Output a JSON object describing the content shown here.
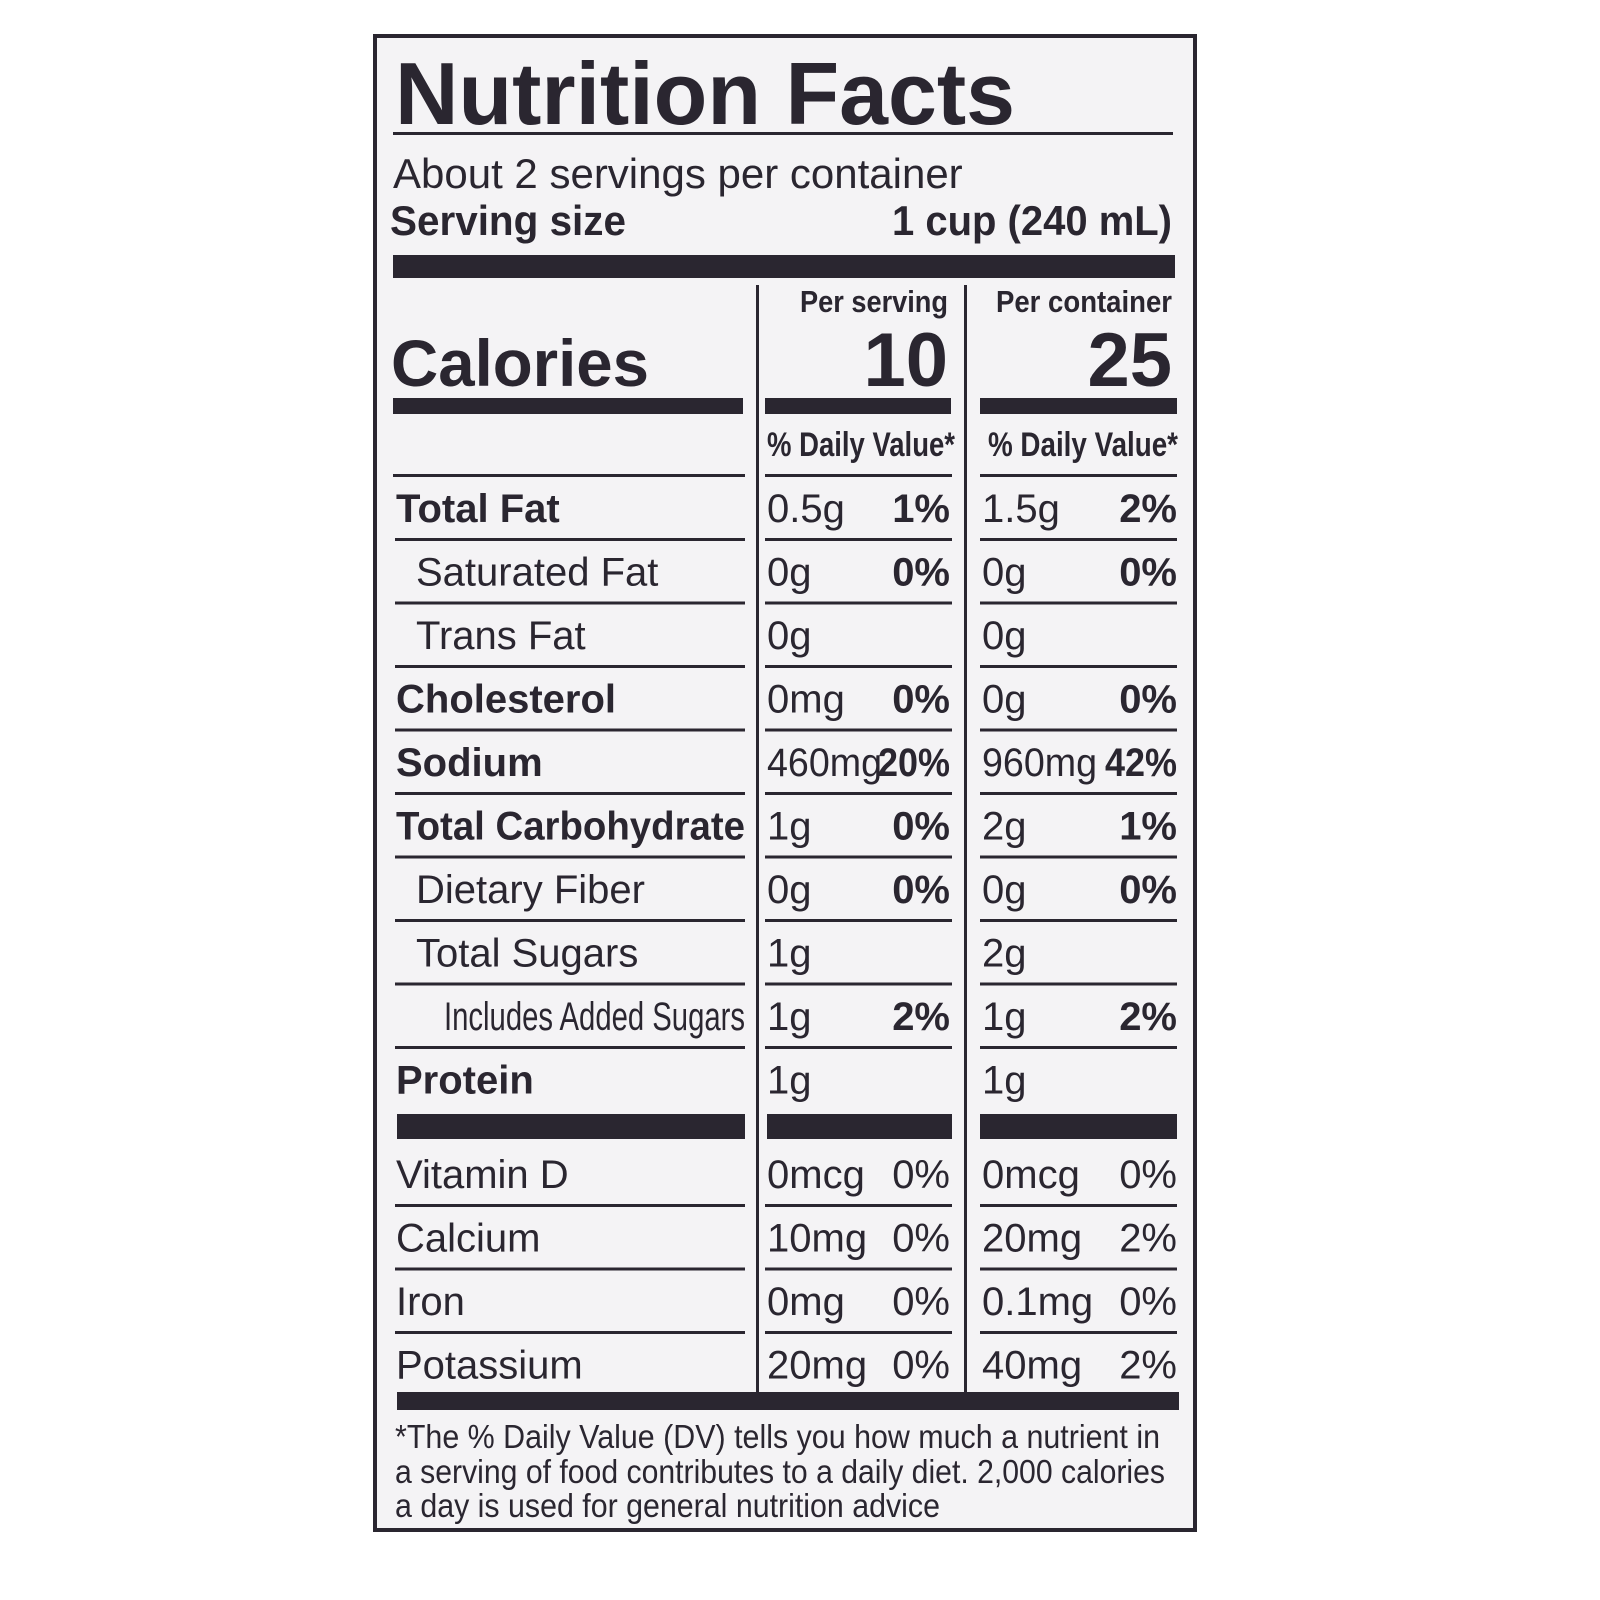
{
  "title": "Nutrition Facts",
  "servings_per_container": "About 2 servings per container",
  "serving_size": {
    "label": "Serving size",
    "value": "1 cup (240 mL)"
  },
  "columns": [
    "Per serving",
    "Per container"
  ],
  "calories": {
    "label": "Calories",
    "per_serving": "10",
    "per_container": "25"
  },
  "daily_value_header": "% Daily Value*",
  "rows": [
    {
      "name": "Total Fat",
      "per_serving": {
        "amount": "0.5g",
        "dv": "1%"
      },
      "per_container": {
        "amount": "1.5g",
        "dv": "2%"
      }
    },
    {
      "name": "Saturated Fat",
      "per_serving": {
        "amount": "0g",
        "dv": "0%"
      },
      "per_container": {
        "amount": "0g",
        "dv": "0%"
      }
    },
    {
      "name": "Trans Fat",
      "per_serving": {
        "amount": "0g"
      },
      "per_container": {
        "amount": "0g"
      }
    },
    {
      "name": "Cholesterol",
      "per_serving": {
        "amount": "0mg",
        "dv": "0%"
      },
      "per_container": {
        "amount": "0g",
        "dv": "0%"
      }
    },
    {
      "name": "Sodium",
      "per_serving": {
        "amount": "460mg",
        "dv": "20%"
      },
      "per_container": {
        "amount": "960mg",
        "dv": "42%"
      }
    },
    {
      "name": "Total Carbohydrate",
      "per_serving": {
        "amount": "1g",
        "dv": "0%"
      },
      "per_container": {
        "amount": "2g",
        "dv": "1%"
      }
    },
    {
      "name": "Dietary Fiber",
      "per_serving": {
        "amount": "0g",
        "dv": "0%"
      },
      "per_container": {
        "amount": "0g",
        "dv": "0%"
      }
    },
    {
      "name": "Total Sugars",
      "per_serving": {
        "amount": "1g"
      },
      "per_container": {
        "amount": "2g"
      }
    },
    {
      "name": "Includes Added Sugars",
      "per_serving": {
        "amount": "1g",
        "dv": "2%"
      },
      "per_container": {
        "amount": "1g",
        "dv": "2%"
      }
    },
    {
      "name": "Protein",
      "per_serving": {
        "amount": "1g"
      },
      "per_container": {
        "amount": "1g"
      }
    }
  ],
  "vitamins": [
    {
      "name": "Vitamin D",
      "per_serving": {
        "amount": "0mcg",
        "dv": "0%"
      },
      "per_container": {
        "amount": "0mcg",
        "dv": "0%"
      }
    },
    {
      "name": "Calcium",
      "per_serving": {
        "amount": "10mg",
        "dv": "0%"
      },
      "per_container": {
        "amount": "20mg",
        "dv": "2%"
      }
    },
    {
      "name": "Iron",
      "per_serving": {
        "amount": "0mg",
        "dv": "0%"
      },
      "per_container": {
        "amount": "0.1mg",
        "dv": "0%"
      }
    },
    {
      "name": "Potassium",
      "per_serving": {
        "amount": "20mg",
        "dv": "0%"
      },
      "per_container": {
        "amount": "40mg",
        "dv": "2%"
      }
    }
  ],
  "footnote": [
    "*The % Daily Value (DV) tells you how much a nutrient in",
    "a serving of food contributes to a daily diet. 2,000 calories",
    "a day is used for general nutrition advice"
  ]
}
